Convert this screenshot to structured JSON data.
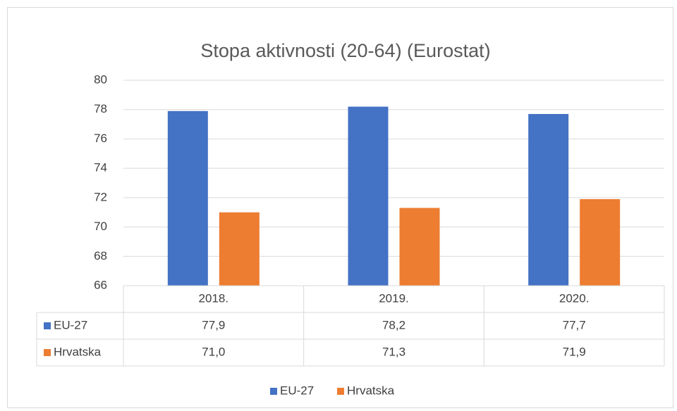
{
  "chart_data": {
    "type": "bar",
    "title": "Stopa aktivnosti (20-64) (Eurostat)",
    "categories": [
      "2018.",
      "2019.",
      "2020."
    ],
    "series": [
      {
        "name": "EU-27",
        "color": "#4472c4",
        "values": [
          77.9,
          78.2,
          77.7
        ],
        "value_labels": [
          "77,9",
          "78,2",
          "77,7"
        ]
      },
      {
        "name": "Hrvatska",
        "color": "#ed7d31",
        "values": [
          71.0,
          71.3,
          71.9
        ],
        "value_labels": [
          "71,0",
          "71,3",
          "71,9"
        ]
      }
    ],
    "ylim": [
      66,
      80
    ],
    "yticks": [
      66,
      68,
      70,
      72,
      74,
      76,
      78,
      80
    ],
    "grid": true,
    "legend": "bottom"
  }
}
